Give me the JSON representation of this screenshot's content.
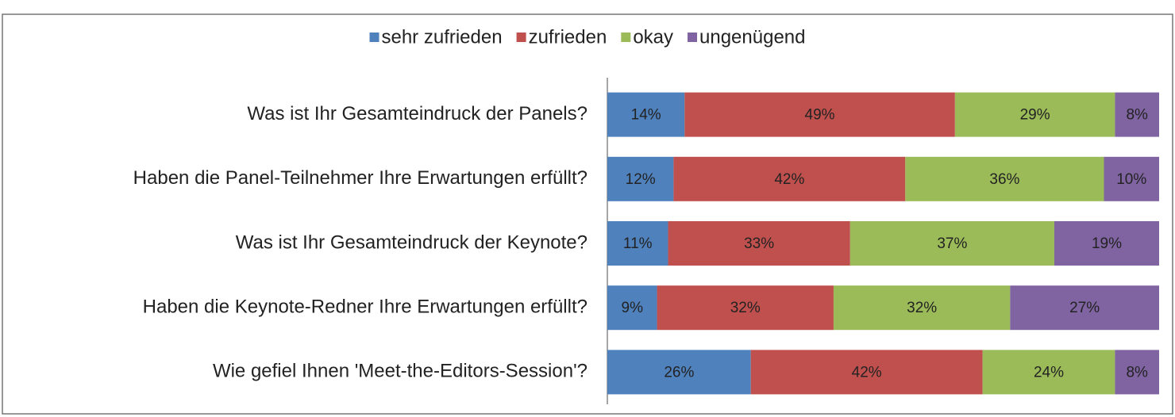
{
  "chart_data": {
    "type": "stacked_bar_horizontal",
    "categories": [
      "Was ist Ihr Gesamteindruck der Panels?",
      "Haben die Panel-Teilnehmer Ihre Erwartungen erfüllt?",
      "Was ist Ihr Gesamteindruck der Keynote?",
      "Haben die Keynote-Redner Ihre Erwartungen erfüllt?",
      "Wie gefiel Ihnen 'Meet-the-Editors-Session'?"
    ],
    "series": [
      {
        "name": "sehr zufrieden",
        "color": "#4f81bd",
        "values": [
          14,
          12,
          11,
          9,
          26
        ],
        "value_labels": [
          "14%",
          "12%",
          "11%",
          "9%",
          "26%"
        ]
      },
      {
        "name": "zufrieden",
        "color": "#c0504d",
        "values": [
          49,
          42,
          33,
          32,
          42
        ],
        "value_labels": [
          "49%",
          "42%",
          "33%",
          "32%",
          "42%"
        ]
      },
      {
        "name": "okay",
        "color": "#9bbb59",
        "values": [
          29,
          36,
          37,
          32,
          24
        ],
        "value_labels": [
          "29%",
          "36%",
          "37%",
          "32%",
          "24%"
        ]
      },
      {
        "name": "ungenügend",
        "color": "#8064a2",
        "values": [
          8,
          10,
          19,
          27,
          8
        ],
        "value_labels": [
          "8%",
          "10%",
          "19%",
          "27%",
          "8%"
        ]
      }
    ],
    "xlim": [
      0,
      100
    ],
    "legend": "top"
  }
}
